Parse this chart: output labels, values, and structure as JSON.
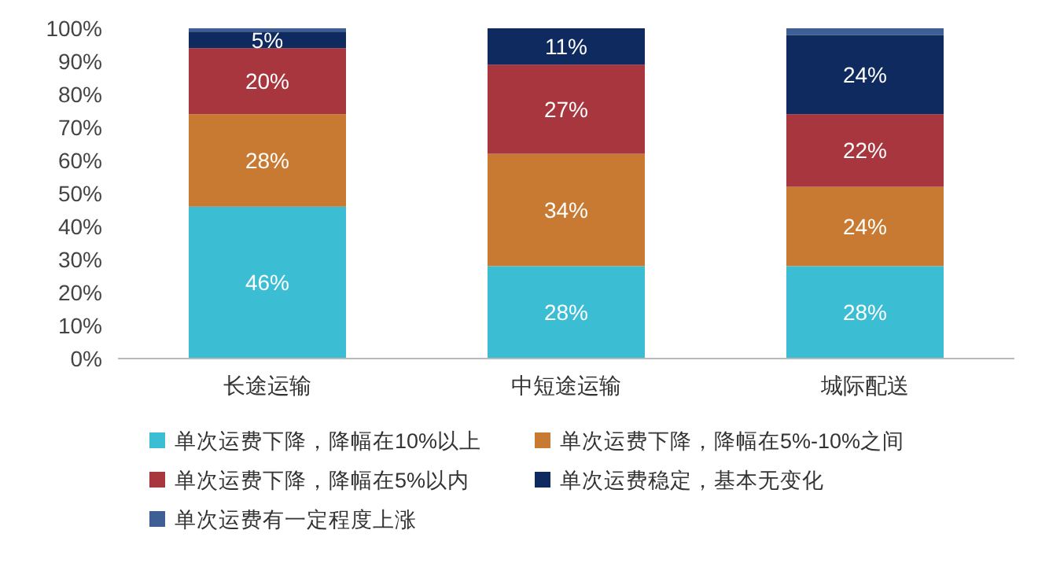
{
  "chart_data": {
    "type": "bar",
    "stacked": true,
    "categories": [
      "长途运输",
      "中短途运输",
      "城际配送"
    ],
    "series": [
      {
        "name": "单次运费下降，降幅在10%以上",
        "color": "#3bbdd3",
        "values": [
          46,
          28,
          28
        ],
        "value_labels": [
          "46%",
          "28%",
          "28%"
        ]
      },
      {
        "name": "单次运费下降，降幅在5%-10%之间",
        "color": "#c97a32",
        "values": [
          28,
          34,
          24
        ],
        "value_labels": [
          "28%",
          "34%",
          "24%"
        ]
      },
      {
        "name": "单次运费下降，降幅在5%以内",
        "color": "#a8363e",
        "values": [
          20,
          27,
          22
        ],
        "value_labels": [
          "20%",
          "27%",
          "22%"
        ]
      },
      {
        "name": "单次运费稳定，基本无变化",
        "color": "#0e2a5e",
        "values": [
          5,
          11,
          24
        ],
        "value_labels": [
          "5%",
          "11%",
          "24%"
        ]
      },
      {
        "name": "单次运费有一定程度上涨",
        "color": "#3d5f94",
        "values": [
          1,
          0,
          2
        ],
        "value_labels": [
          null,
          null,
          null
        ]
      }
    ],
    "ylim": [
      0,
      100
    ],
    "yticks": [
      {
        "value": 0,
        "label": "0%"
      },
      {
        "value": 10,
        "label": "10%"
      },
      {
        "value": 20,
        "label": "20%"
      },
      {
        "value": 30,
        "label": "30%"
      },
      {
        "value": 40,
        "label": "40%"
      },
      {
        "value": 50,
        "label": "50%"
      },
      {
        "value": 60,
        "label": "60%"
      },
      {
        "value": 70,
        "label": "70%"
      },
      {
        "value": 80,
        "label": "80%"
      },
      {
        "value": 90,
        "label": "90%"
      },
      {
        "value": 100,
        "label": "100%"
      }
    ],
    "legend": "bottom"
  }
}
